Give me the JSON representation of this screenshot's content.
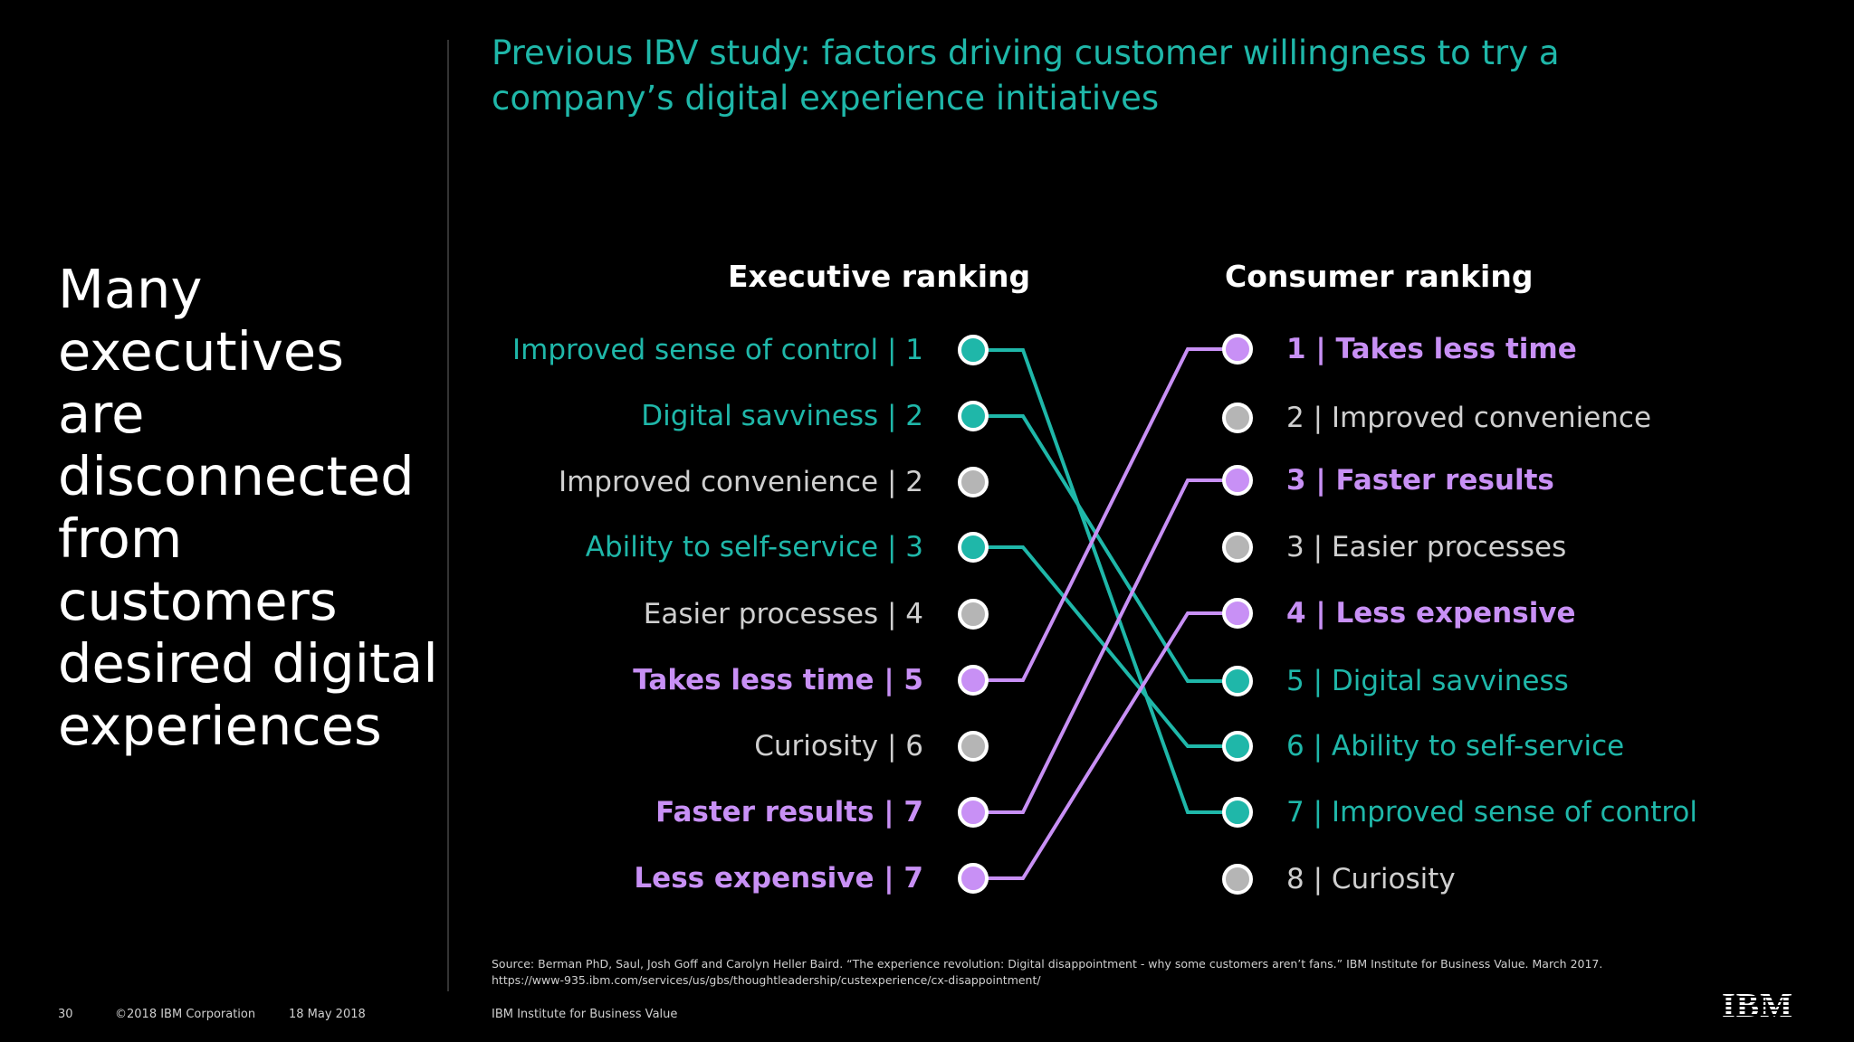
{
  "headline": "Many executives are disconnected from customers desired digital experiences",
  "subtitle": "Previous IBV study: factors driving customer willingness to try a company’s digital experience initiatives",
  "executive_heading": "Executive ranking",
  "consumer_heading": "Consumer ranking",
  "colors": {
    "teal": "#1fb7a9",
    "purple": "#c890f5",
    "gray": "#b5b5b5"
  },
  "executive": [
    {
      "text": "Improved sense of control  | 1",
      "color": "teal"
    },
    {
      "text": "Digital savviness  | 2",
      "color": "teal"
    },
    {
      "text": "Improved convenience  | 2",
      "color": "gray"
    },
    {
      "text": "Ability to self-service  | 3",
      "color": "teal"
    },
    {
      "text": "Easier processes  | 4",
      "color": "gray"
    },
    {
      "text": "Takes less time  | 5",
      "color": "purple"
    },
    {
      "text": "Curiosity  | 6",
      "color": "gray"
    },
    {
      "text": "Faster results  | 7",
      "color": "purple"
    },
    {
      "text": "Less expensive  | 7",
      "color": "purple"
    }
  ],
  "consumer": [
    {
      "text": "1 |  Takes less time",
      "color": "purple"
    },
    {
      "text": "2 |  Improved convenience",
      "color": "gray"
    },
    {
      "text": "3 |  Faster results",
      "color": "purple"
    },
    {
      "text": "3 |  Easier processes",
      "color": "gray"
    },
    {
      "text": "4 |  Less expensive",
      "color": "purple"
    },
    {
      "text": "5 |  Digital savviness",
      "color": "teal"
    },
    {
      "text": "6 |  Ability to self-service",
      "color": "teal"
    },
    {
      "text": "7 |  Improved sense of control",
      "color": "teal"
    },
    {
      "text": "8 |  Curiosity",
      "color": "gray"
    }
  ],
  "links": [
    {
      "from": 0,
      "to": 7,
      "color": "teal"
    },
    {
      "from": 1,
      "to": 5,
      "color": "teal"
    },
    {
      "from": 3,
      "to": 6,
      "color": "teal"
    },
    {
      "from": 5,
      "to": 0,
      "color": "purple"
    },
    {
      "from": 7,
      "to": 2,
      "color": "purple"
    },
    {
      "from": 8,
      "to": 4,
      "color": "purple"
    }
  ],
  "footer": {
    "page": "30",
    "copyright": "©2018 IBM Corporation",
    "date": "18 May 2018",
    "org": "IBM Institute for Business Value",
    "source": "Source: Berman PhD, Saul, Josh Goff and Carolyn Heller Baird. “The experience revolution: Digital disappointment - why some customers aren’t fans.” IBM Institute for Business Value. March 2017. https://www-935.ibm.com/services/us/gbs/thoughtleadership/custexperience/cx-disappointment/",
    "logo": "IBM"
  }
}
